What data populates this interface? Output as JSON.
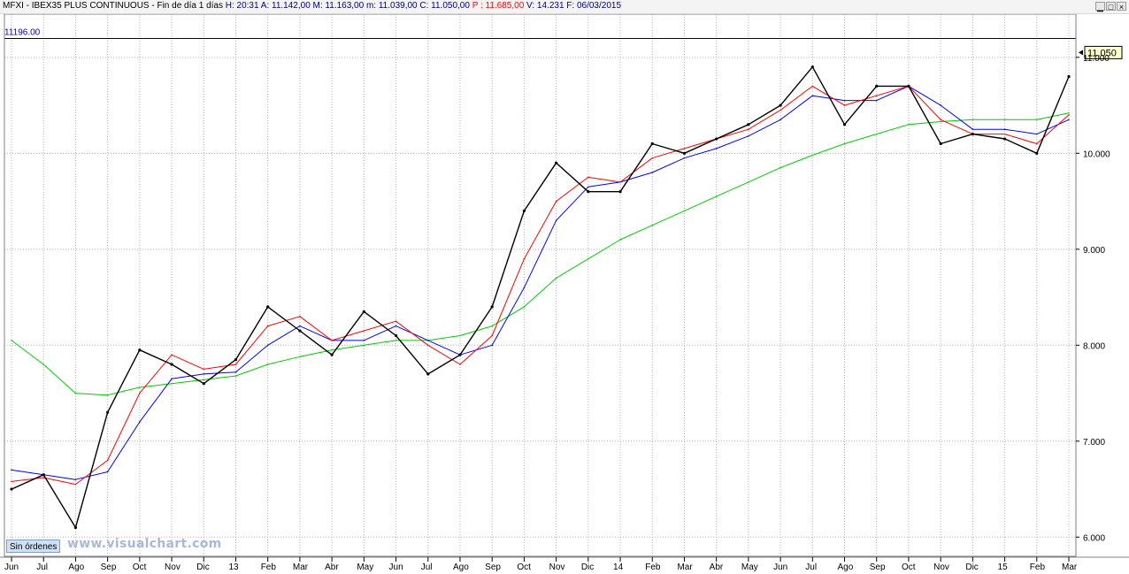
{
  "header": {
    "parts": [
      {
        "text": "MFXI - IBEX35 PLUS CONTINUOUS - Fin de día 1 días ",
        "color": "#000000"
      },
      {
        "text": "H: 20:31",
        "color": "#000080"
      },
      {
        "text": "  A: 11.142,00",
        "color": "#000080"
      },
      {
        "text": "  M: 11.163,00",
        "color": "#000080"
      },
      {
        "text": "  m: 11.039,00",
        "color": "#000080"
      },
      {
        "text": "  C: 11.050,00",
        "color": "#000080"
      },
      {
        "text": "  P : 11.685,00",
        "color": "#ff0000"
      },
      {
        "text": "  V: 14.231",
        "color": "#000080"
      },
      {
        "text": "  F: 06/03/2015",
        "color": "#000080"
      }
    ],
    "window_buttons": [
      "▁",
      "□",
      "×"
    ]
  },
  "sin_ordenes_label": "Sin órdenes",
  "watermark": "www.visualchart.com",
  "colors": {
    "price": "#000000",
    "ma_red": "#ff0000",
    "ma_blue": "#0000ff",
    "ma_green": "#00cc00",
    "grid": "#b0b0b0",
    "level_line": "#000040",
    "level_label": "#0000c0"
  },
  "chart_data": {
    "type": "line",
    "instrument": "IBEX35 PLUS CONTINUOUS",
    "reference_level": {
      "value": 11196,
      "label": "11196.00"
    },
    "last_price": {
      "value": 11050,
      "label": "11.050"
    },
    "ylim": [
      5800,
      11450
    ],
    "y_ticks": [
      {
        "value": 6000,
        "label": "6.000"
      },
      {
        "value": 7000,
        "label": "7.000"
      },
      {
        "value": 8000,
        "label": "8.000"
      },
      {
        "value": 9000,
        "label": "9.000"
      },
      {
        "value": 10000,
        "label": "10.000"
      },
      {
        "value": 11000,
        "label": "11.000"
      }
    ],
    "x_labels": [
      "Jun",
      "Jul",
      "Ago",
      "Sep",
      "Oct",
      "Nov",
      "Dic",
      "13",
      "Feb",
      "Mar",
      "Abr",
      "May",
      "Jun",
      "Jul",
      "Ago",
      "Sep",
      "Oct",
      "Nov",
      "Dic",
      "14",
      "Feb",
      "Mar",
      "Abr",
      "May",
      "Jun",
      "Jul",
      "Ago",
      "Sep",
      "Oct",
      "Nov",
      "Dic",
      "15",
      "Feb",
      "Mar"
    ],
    "x": [
      "2012-06",
      "2012-07",
      "2012-08",
      "2012-09",
      "2012-10",
      "2012-11",
      "2012-12",
      "2013-01",
      "2013-02",
      "2013-03",
      "2013-04",
      "2013-05",
      "2013-06",
      "2013-07",
      "2013-08",
      "2013-09",
      "2013-10",
      "2013-11",
      "2013-12",
      "2014-01",
      "2014-02",
      "2014-03",
      "2014-04",
      "2014-05",
      "2014-06",
      "2014-07",
      "2014-08",
      "2014-09",
      "2014-10",
      "2014-11",
      "2014-12",
      "2015-01",
      "2015-02",
      "2015-03"
    ],
    "series": [
      {
        "role": "price",
        "values": [
          6500,
          6650,
          6100,
          7300,
          7950,
          7800,
          7600,
          7850,
          8400,
          8150,
          7900,
          8350,
          8100,
          7700,
          7900,
          8400,
          9400,
          9900,
          9600,
          9600,
          10100,
          10000,
          10150,
          10300,
          10500,
          10900,
          10300,
          10700,
          10700,
          10100,
          10200,
          10150,
          10000,
          10800
        ]
      },
      {
        "role": "ma_red",
        "values": [
          6580,
          6620,
          6550,
          6800,
          7500,
          7900,
          7750,
          7800,
          8200,
          8300,
          8050,
          8150,
          8250,
          8000,
          7800,
          8100,
          8900,
          9500,
          9750,
          9700,
          9950,
          10050,
          10150,
          10250,
          10450,
          10700,
          10500,
          10600,
          10700,
          10350,
          10200,
          10200,
          10100,
          10400
        ]
      },
      {
        "role": "ma_blue",
        "values": [
          6700,
          6650,
          6600,
          6680,
          7200,
          7650,
          7700,
          7720,
          8000,
          8200,
          8050,
          8050,
          8200,
          8050,
          7900,
          8000,
          8600,
          9300,
          9650,
          9700,
          9800,
          9950,
          10050,
          10180,
          10350,
          10600,
          10550,
          10550,
          10700,
          10500,
          10250,
          10250,
          10200,
          10350
        ]
      },
      {
        "role": "ma_green",
        "values": [
          8050,
          7800,
          7500,
          7480,
          7560,
          7600,
          7640,
          7680,
          7800,
          7880,
          7950,
          8000,
          8050,
          8050,
          8100,
          8200,
          8400,
          8700,
          8900,
          9100,
          9250,
          9400,
          9550,
          9700,
          9850,
          9980,
          10100,
          10200,
          10300,
          10330,
          10350,
          10350,
          10350,
          10420
        ]
      }
    ]
  }
}
